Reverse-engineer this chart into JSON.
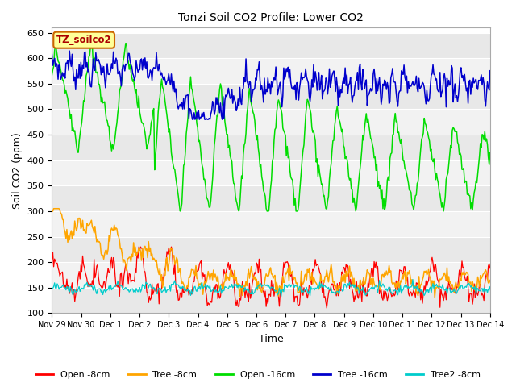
{
  "title": "Tonzi Soil CO2 Profile: Lower CO2",
  "xlabel": "Time",
  "ylabel": "Soil CO2 (ppm)",
  "ylim": [
    100,
    660
  ],
  "yticks": [
    100,
    150,
    200,
    250,
    300,
    350,
    400,
    450,
    500,
    550,
    600,
    650
  ],
  "legend_label": "TZ_soilco2",
  "series": {
    "Open_8cm": {
      "color": "#ff0000",
      "label": "Open -8cm"
    },
    "Tree_8cm": {
      "color": "#ffa500",
      "label": "Tree -8cm"
    },
    "Open_16cm": {
      "color": "#00dd00",
      "label": "Open -16cm"
    },
    "Tree_16cm": {
      "color": "#0000cc",
      "label": "Tree -16cm"
    },
    "Tree2_8cm": {
      "color": "#00cccc",
      "label": "Tree2 -8cm"
    }
  },
  "band_colors": [
    "#e8e8e8",
    "#f2f2f2"
  ],
  "n_pts": 500,
  "n_days": 15
}
